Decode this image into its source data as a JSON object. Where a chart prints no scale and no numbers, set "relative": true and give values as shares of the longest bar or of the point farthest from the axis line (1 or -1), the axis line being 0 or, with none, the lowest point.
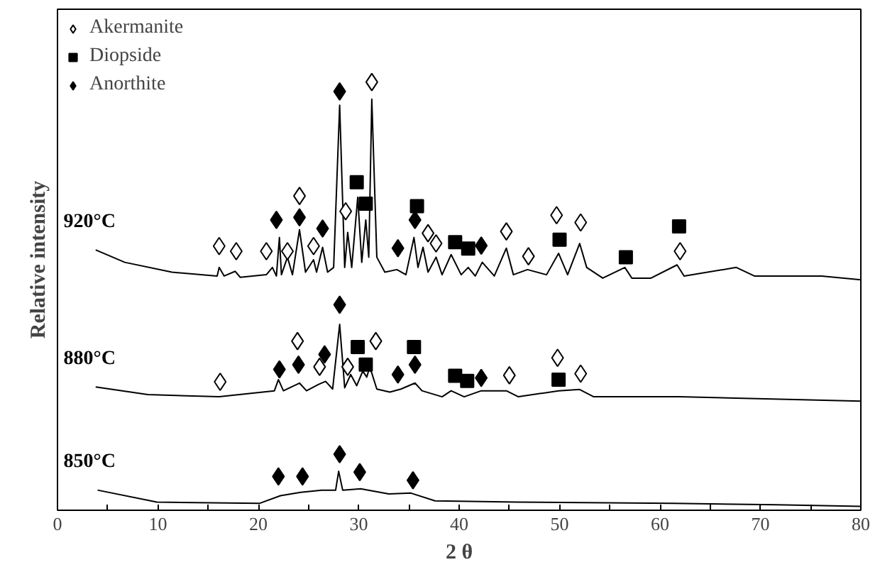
{
  "chart_data": {
    "type": "line",
    "relative": true,
    "xlabel": "2 θ",
    "ylabel": "Relative intensity",
    "xlim": [
      0,
      80
    ],
    "xticks": [
      0,
      {
        "value": 5,
        "label": null
      },
      10,
      {
        "value": 15,
        "label": null
      },
      20,
      {
        "value": 25,
        "label": null
      },
      30,
      {
        "value": 35,
        "label": null
      },
      40,
      {
        "value": 45,
        "label": null
      },
      50,
      {
        "value": 55,
        "label": null
      },
      60,
      {
        "value": 65,
        "label": null
      },
      70,
      {
        "value": 75,
        "label": null
      },
      80
    ],
    "grid": false,
    "legend": "top left",
    "line_style": "solid",
    "series": [
      {
        "name": "920°C",
        "color": "#000000",
        "x": [
          3.8,
          6.7,
          11.4,
          15.9,
          16.1,
          16.6,
          17.7,
          18.2,
          20.8,
          21.4,
          21.8,
          22.1,
          22.3,
          22.9,
          23.4,
          24.1,
          24.7,
          25.5,
          25.8,
          26.4,
          26.9,
          27.5,
          28.1,
          28.6,
          28.9,
          29.3,
          29.9,
          30.3,
          30.7,
          31.0,
          31.3,
          31.8,
          32.6,
          33.8,
          34.7,
          35.5,
          35.9,
          36.4,
          36.9,
          37.7,
          38.3,
          39.2,
          40.2,
          40.9,
          41.6,
          42.3,
          43.5,
          44.7,
          45.4,
          46.8,
          48.7,
          49.9,
          50.8,
          52.0,
          52.7,
          54.3,
          56.5,
          57.2,
          59.1,
          61.7,
          62.4,
          67.6,
          69.4,
          76.1,
          80
        ],
        "values": [
          0.608,
          0.579,
          0.556,
          0.547,
          0.567,
          0.547,
          0.558,
          0.544,
          0.55,
          0.567,
          0.547,
          0.637,
          0.55,
          0.591,
          0.55,
          0.655,
          0.556,
          0.585,
          0.556,
          0.614,
          0.556,
          0.567,
          0.946,
          0.567,
          0.649,
          0.567,
          0.731,
          0.579,
          0.678,
          0.591,
          0.96,
          0.591,
          0.556,
          0.562,
          0.55,
          0.637,
          0.567,
          0.614,
          0.556,
          0.591,
          0.55,
          0.597,
          0.55,
          0.567,
          0.547,
          0.579,
          0.547,
          0.612,
          0.55,
          0.562,
          0.55,
          0.6,
          0.55,
          0.623,
          0.567,
          0.542,
          0.567,
          0.542,
          0.542,
          0.573,
          0.547,
          0.567,
          0.547,
          0.547,
          0.538
        ]
      },
      {
        "name": "880°C",
        "color": "#000000",
        "x": [
          3.8,
          9.0,
          16.1,
          21.6,
          22.0,
          22.5,
          24.1,
          24.8,
          26.0,
          26.7,
          27.4,
          28.1,
          28.6,
          29.2,
          29.8,
          30.4,
          30.8,
          31.1,
          31.8,
          33.1,
          34.2,
          35.6,
          36.3,
          38.3,
          39.2,
          40.5,
          42.2,
          44.7,
          45.9,
          49.9,
          52.0,
          53.4,
          61.9,
          80
        ],
        "values": [
          0.288,
          0.27,
          0.265,
          0.279,
          0.305,
          0.279,
          0.297,
          0.279,
          0.294,
          0.301,
          0.283,
          0.434,
          0.286,
          0.317,
          0.291,
          0.325,
          0.311,
          0.335,
          0.283,
          0.276,
          0.283,
          0.297,
          0.279,
          0.265,
          0.279,
          0.265,
          0.279,
          0.279,
          0.265,
          0.279,
          0.282,
          0.265,
          0.265,
          0.255
        ]
      },
      {
        "name": "850°C",
        "color": "#000000",
        "x": [
          4.0,
          9.9,
          20.1,
          22.2,
          24.2,
          26.3,
          27.7,
          28.0,
          28.4,
          30.2,
          33.0,
          35.2,
          37.6,
          45.8,
          61.3,
          71.6,
          80
        ],
        "values": [
          0.047,
          0.019,
          0.016,
          0.034,
          0.042,
          0.047,
          0.047,
          0.091,
          0.047,
          0.05,
          0.038,
          0.04,
          0.022,
          0.019,
          0.016,
          0.013,
          0.009
        ]
      },
      {
        "name": "Akermanite",
        "type": "scatter",
        "marker": "diamond",
        "color": "#ffffff",
        "x": [
          16.1,
          17.8,
          20.8,
          22.9,
          25.5,
          24.1,
          28.7,
          31.3,
          36.9,
          37.7,
          44.7,
          46.9,
          49.7,
          52.1,
          62.0,
          16.2,
          23.9,
          26.1,
          28.9,
          31.7,
          45.0,
          49.8,
          52.1
        ],
        "values": [
          0.617,
          0.605,
          0.605,
          0.605,
          0.617,
          0.734,
          0.698,
          1.0,
          0.647,
          0.623,
          0.651,
          0.593,
          0.689,
          0.672,
          0.605,
          0.3,
          0.395,
          0.335,
          0.335,
          0.395,
          0.315,
          0.356,
          0.319
        ]
      },
      {
        "name": "Diopside",
        "type": "scatter",
        "marker": "square",
        "color": "#000000",
        "x": [
          29.8,
          30.7,
          35.8,
          39.6,
          40.9,
          50.0,
          56.6,
          61.9,
          29.9,
          30.7,
          35.5,
          39.6,
          40.8,
          49.9
        ],
        "values": [
          0.766,
          0.716,
          0.71,
          0.626,
          0.611,
          0.632,
          0.591,
          0.663,
          0.381,
          0.34,
          0.381,
          0.314,
          0.302,
          0.305
        ]
      },
      {
        "name": "Anorthite",
        "type": "scatter",
        "marker": "diamond",
        "color": "#000000",
        "x": [
          21.8,
          24.1,
          26.4,
          28.1,
          33.9,
          35.6,
          42.2,
          22.1,
          24.0,
          26.6,
          28.1,
          33.9,
          35.6,
          42.2,
          22.0,
          24.4,
          28.1,
          30.1,
          35.4
        ],
        "values": [
          0.678,
          0.684,
          0.658,
          0.978,
          0.612,
          0.678,
          0.618,
          0.329,
          0.34,
          0.364,
          0.48,
          0.317,
          0.34,
          0.309,
          0.079,
          0.079,
          0.131,
          0.089,
          0.07
        ]
      }
    ]
  }
}
